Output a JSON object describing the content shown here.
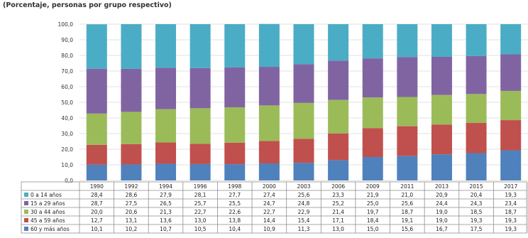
{
  "subtitle": "(Porcentaje, personas por grupo respectivo)",
  "chart_data": {
    "type": "bar",
    "stacked": true,
    "categories": [
      "1990",
      "1992",
      "1994",
      "1996",
      "1998",
      "2000",
      "2003",
      "2006",
      "2009",
      "2011",
      "2013",
      "2015",
      "2017"
    ],
    "ylim": [
      0,
      100
    ],
    "yticks": [
      "0,0",
      "10,0",
      "20,0",
      "30,0",
      "40,0",
      "50,0",
      "60,0",
      "70,0",
      "80,0",
      "90,0",
      "100,0"
    ],
    "series": [
      {
        "name": "60 y más años",
        "color": "#4f81bd",
        "values": [
          10.1,
          10.2,
          10.7,
          10.5,
          10.4,
          10.9,
          11.3,
          13.0,
          15.0,
          15.6,
          16.7,
          17.5,
          19.3
        ],
        "labels": [
          "10,1",
          "10,2",
          "10,7",
          "10,5",
          "10,4",
          "10,9",
          "11,3",
          "13,0",
          "15,0",
          "15,6",
          "16,7",
          "17,5",
          "19,3"
        ]
      },
      {
        "name": "45 a 59 años",
        "color": "#c0504d",
        "values": [
          12.7,
          13.1,
          13.6,
          13.0,
          13.8,
          14.4,
          15.4,
          17.1,
          18.4,
          19.1,
          19.0,
          19.3,
          19.3
        ],
        "labels": [
          "12,7",
          "13,1",
          "13,6",
          "13,0",
          "13,8",
          "14,4",
          "15,4",
          "17,1",
          "18,4",
          "19,1",
          "19,0",
          "19,3",
          "19,3"
        ]
      },
      {
        "name": "30 a 44 años",
        "color": "#9bbb59",
        "values": [
          20.0,
          20.6,
          21.3,
          22.7,
          22.6,
          22.7,
          22.9,
          21.4,
          19.7,
          18.7,
          19.0,
          18.5,
          18.7
        ],
        "labels": [
          "20,0",
          "20,6",
          "21,3",
          "22,7",
          "22,6",
          "22,7",
          "22,9",
          "21,4",
          "19,7",
          "18,7",
          "19,0",
          "18,5",
          "18,7"
        ]
      },
      {
        "name": "15 a 29 años",
        "color": "#8064a2",
        "values": [
          28.7,
          27.5,
          26.5,
          25.7,
          25.5,
          24.7,
          24.8,
          25.2,
          25.0,
          25.6,
          24.4,
          24.3,
          23.4
        ],
        "labels": [
          "28,7",
          "27,5",
          "26,5",
          "25,7",
          "25,5",
          "24,7",
          "24,8",
          "25,2",
          "25,0",
          "25,6",
          "24,4",
          "24,3",
          "23,4"
        ]
      },
      {
        "name": "0 a 14 años",
        "color": "#4bacc6",
        "values": [
          28.4,
          28.6,
          27.9,
          28.1,
          27.7,
          27.4,
          25.6,
          23.3,
          21.9,
          21.0,
          20.9,
          20.4,
          19.3
        ],
        "labels": [
          "28,4",
          "28,6",
          "27,9",
          "28,1",
          "27,7",
          "27,4",
          "25,6",
          "23,3",
          "21,9",
          "21,0",
          "20,9",
          "20,4",
          "19,3"
        ]
      }
    ]
  }
}
